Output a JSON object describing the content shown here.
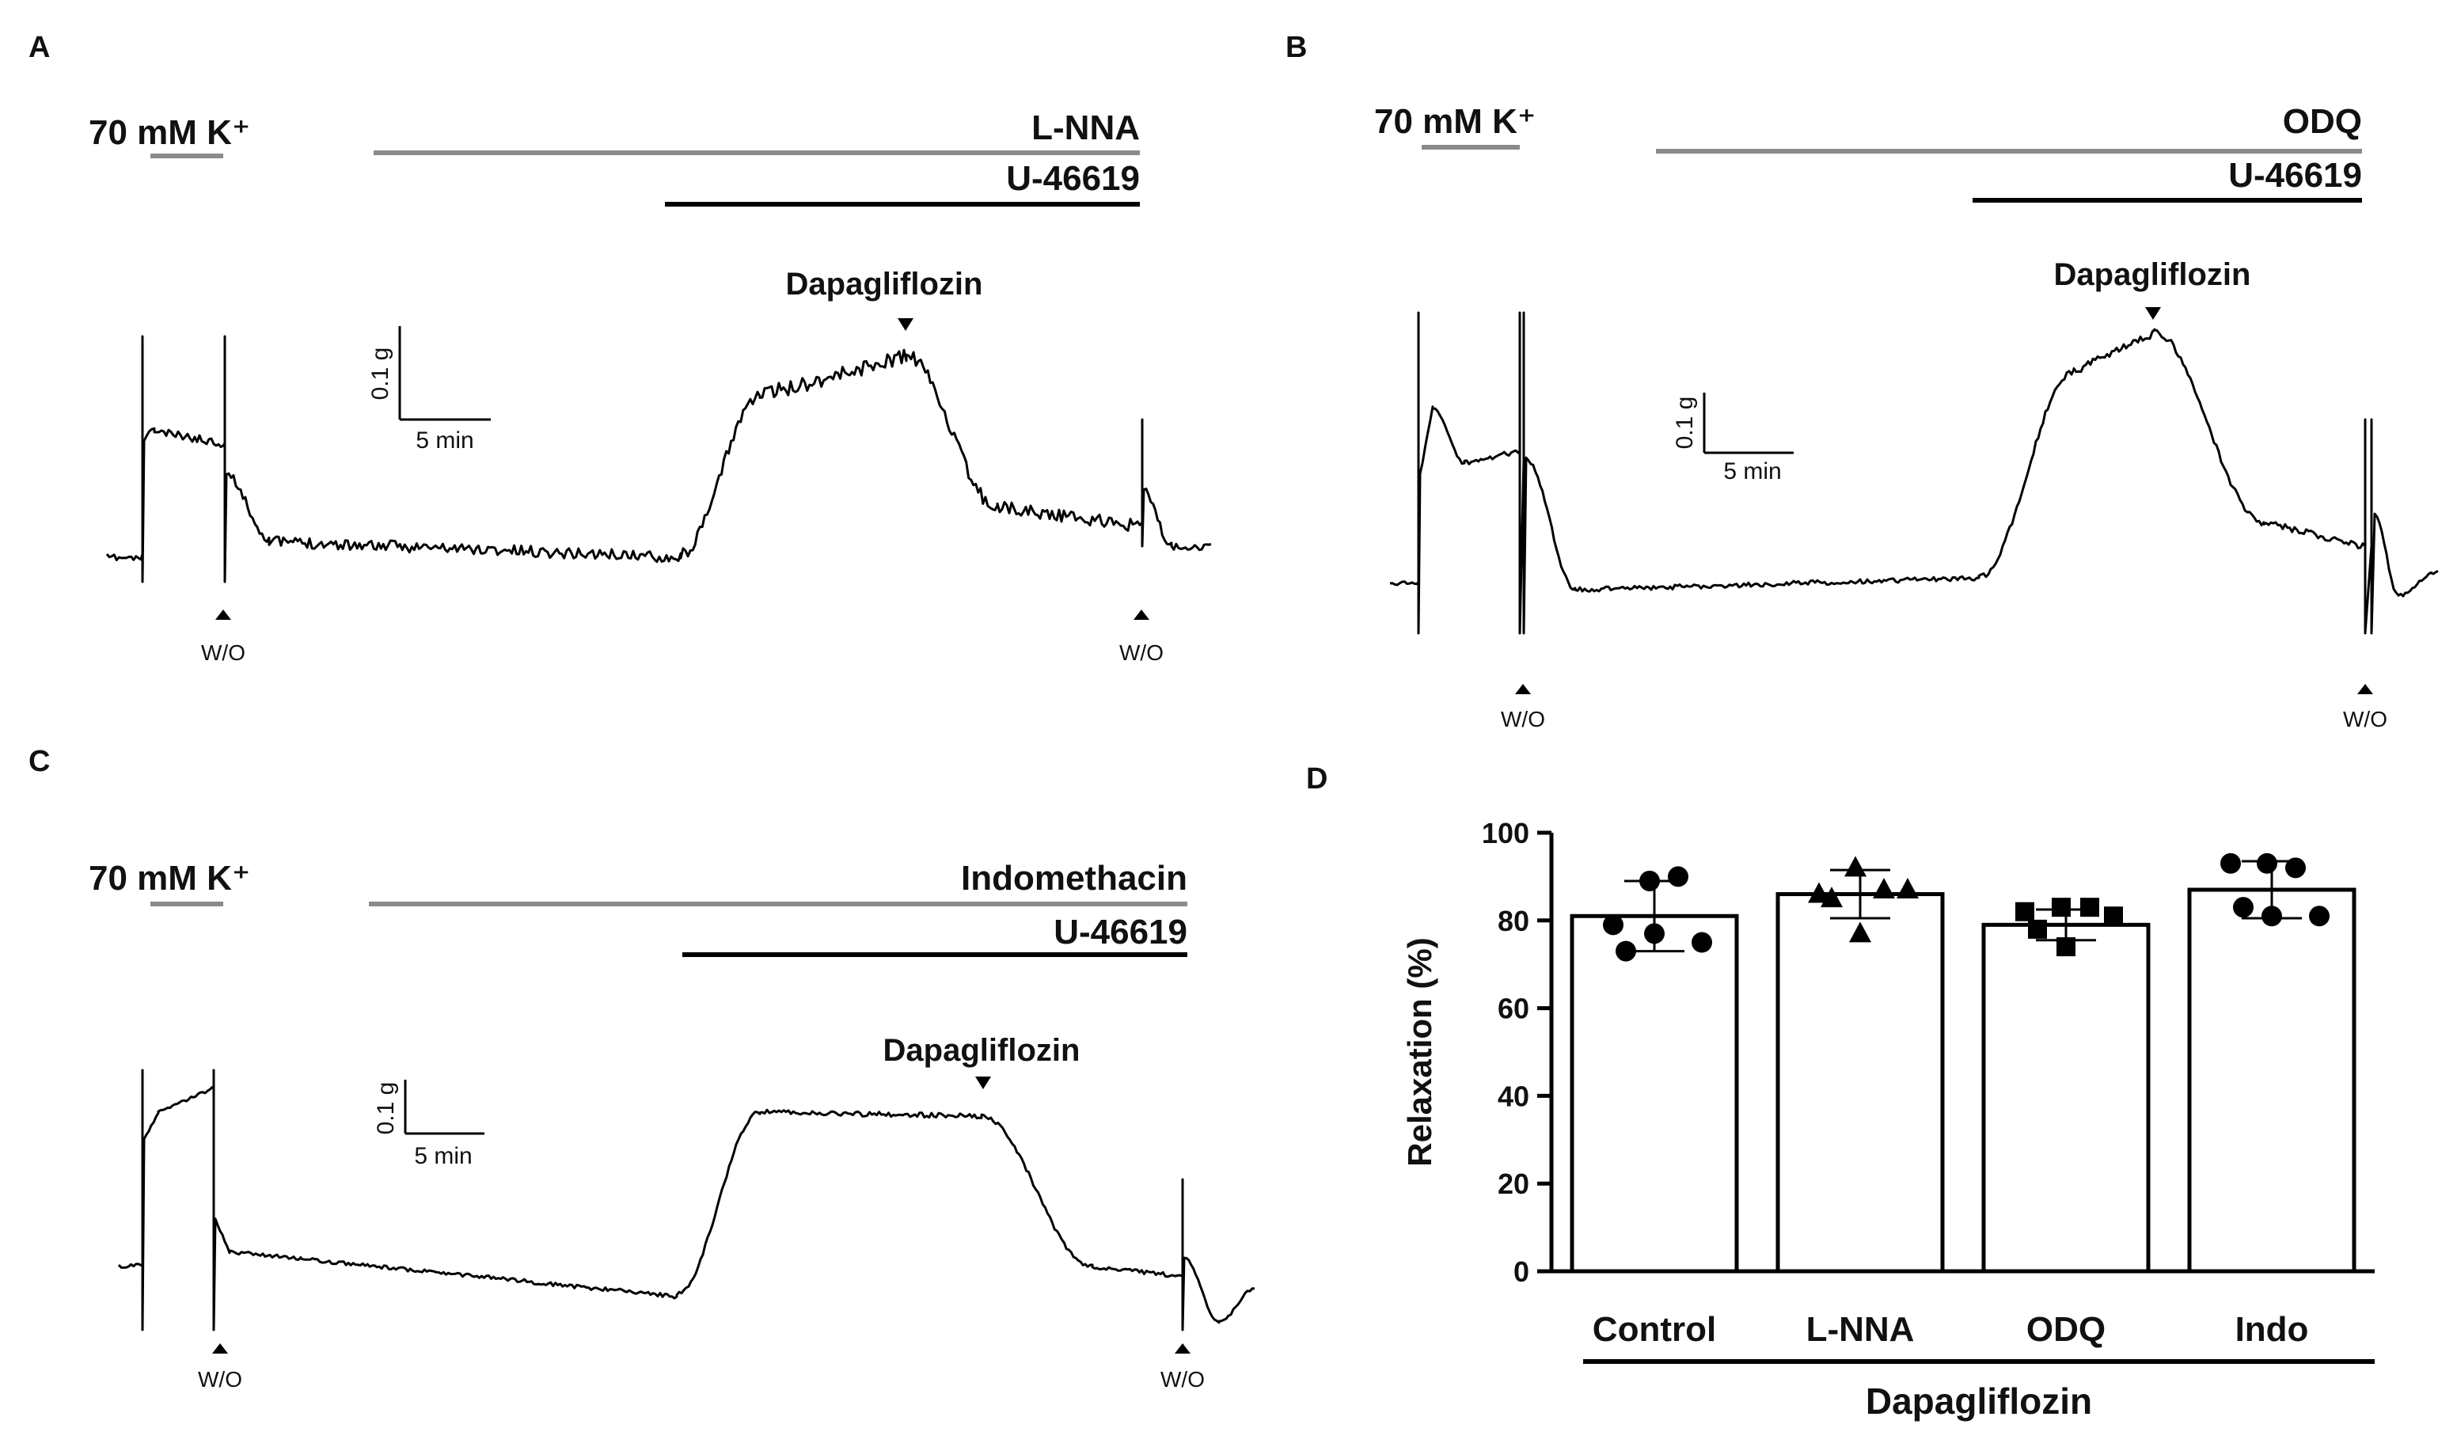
{
  "figure": {
    "panels": [
      {
        "letter": "A",
        "k_label": "70 mM K⁺",
        "drug": "L-NNA",
        "agonist": "U-46619",
        "arrow_label": "Dapagliflozin",
        "scale_y": "0.1 g",
        "scale_x": "5 min",
        "washout_label": "W/O"
      },
      {
        "letter": "B",
        "k_label": "70 mM K⁺",
        "drug": "ODQ",
        "agonist": "U-46619",
        "arrow_label": "Dapagliflozin",
        "scale_y": "0.1 g",
        "scale_x": "5 min",
        "washout_label": "W/O"
      },
      {
        "letter": "C",
        "k_label": "70 mM K⁺",
        "drug": "Indomethacin",
        "agonist": "U-46619",
        "arrow_label": "Dapagliflozin",
        "scale_y": "0.1 g",
        "scale_x": "5 min",
        "washout_label": "W/O"
      }
    ],
    "panel_d_letter": "D"
  },
  "chart_data": {
    "type": "bar",
    "categories": [
      "Control",
      "L-NNA",
      "ODQ",
      "Indo"
    ],
    "values": [
      81,
      86,
      79,
      87
    ],
    "error": [
      8,
      5.5,
      3.5,
      6.5
    ],
    "points": [
      [
        89,
        90,
        79,
        75,
        73,
        77
      ],
      [
        92,
        87,
        86,
        87,
        85,
        77
      ],
      [
        83,
        83,
        82,
        81,
        78,
        74
      ],
      [
        93,
        92,
        93,
        81,
        83,
        81
      ]
    ],
    "markers": [
      "circle",
      "triangle",
      "square",
      "circle"
    ],
    "ylabel": "Relaxation (%)",
    "xlabel": "Dapagliflozin",
    "ylim": [
      0,
      100
    ],
    "yticks": [
      0,
      20,
      40,
      60,
      80,
      100
    ]
  }
}
